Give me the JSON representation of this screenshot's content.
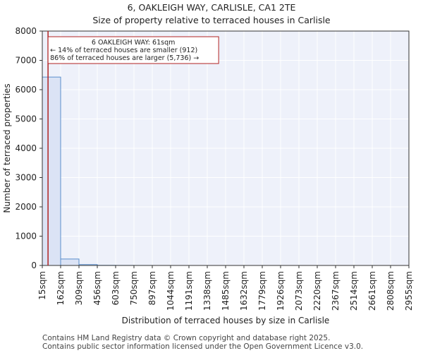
{
  "header": {
    "title_line1": "6, OAKLEIGH WAY, CARLISLE, CA1 2TE",
    "title_line2": "Size of property relative to terraced houses in Carlisle"
  },
  "footer": {
    "line1": "Contains HM Land Registry data © Crown copyright and database right 2025.",
    "line2": "Contains public sector information licensed under the Open Government Licence v3.0."
  },
  "chart_data": {
    "type": "bar",
    "title": "6, OAKLEIGH WAY, CARLISLE, CA1 2TE",
    "subtitle": "Size of property relative to terraced houses in Carlisle",
    "xlabel": "Distribution of terraced houses by size in Carlisle",
    "ylabel": "Number of terraced properties",
    "ylim": [
      0,
      8000
    ],
    "yticks": [
      0,
      1000,
      2000,
      3000,
      4000,
      5000,
      6000,
      7000,
      8000
    ],
    "bin_edges": [
      15,
      162,
      309,
      456,
      603,
      750,
      897,
      1044,
      1191,
      1338,
      1485,
      1632,
      1779,
      1926,
      2073,
      2220,
      2367,
      2514,
      2661,
      2808,
      2955
    ],
    "x_tick_labels": [
      "15sqm",
      "162sqm",
      "309sqm",
      "456sqm",
      "603sqm",
      "750sqm",
      "897sqm",
      "1044sqm",
      "1191sqm",
      "1338sqm",
      "1485sqm",
      "1632sqm",
      "1779sqm",
      "1926sqm",
      "2073sqm",
      "2220sqm",
      "2367sqm",
      "2514sqm",
      "2661sqm",
      "2808sqm",
      "2955sqm"
    ],
    "values": [
      6430,
      220,
      30,
      5,
      2,
      1,
      0,
      0,
      0,
      0,
      0,
      0,
      0,
      0,
      0,
      0,
      0,
      0,
      0,
      0
    ],
    "grid": true,
    "bar_color": "#dbe3f5",
    "bar_edge_color": "#5b8fcc",
    "marker": {
      "value": 61,
      "color": "#b22222",
      "annotation": [
        "6 OAKLEIGH WAY: 61sqm",
        "← 14% of terraced houses are smaller (912)",
        "86% of terraced houses are larger (5,736) →"
      ]
    }
  }
}
